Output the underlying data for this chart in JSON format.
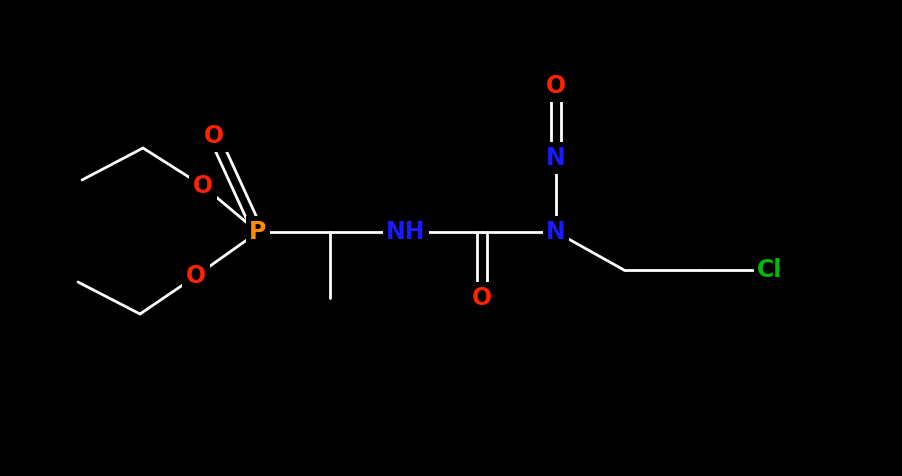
{
  "background_color": "#000000",
  "atom_colors": {
    "C": "#ffffff",
    "H": "#ffffff",
    "O": "#ff2200",
    "N": "#1a1aff",
    "P": "#ff8c00",
    "Cl": "#00bb00"
  },
  "bond_color": "#ffffff",
  "figsize": [
    9.02,
    4.76
  ],
  "dpi": 100,
  "lw": 2.0,
  "fs": 16
}
